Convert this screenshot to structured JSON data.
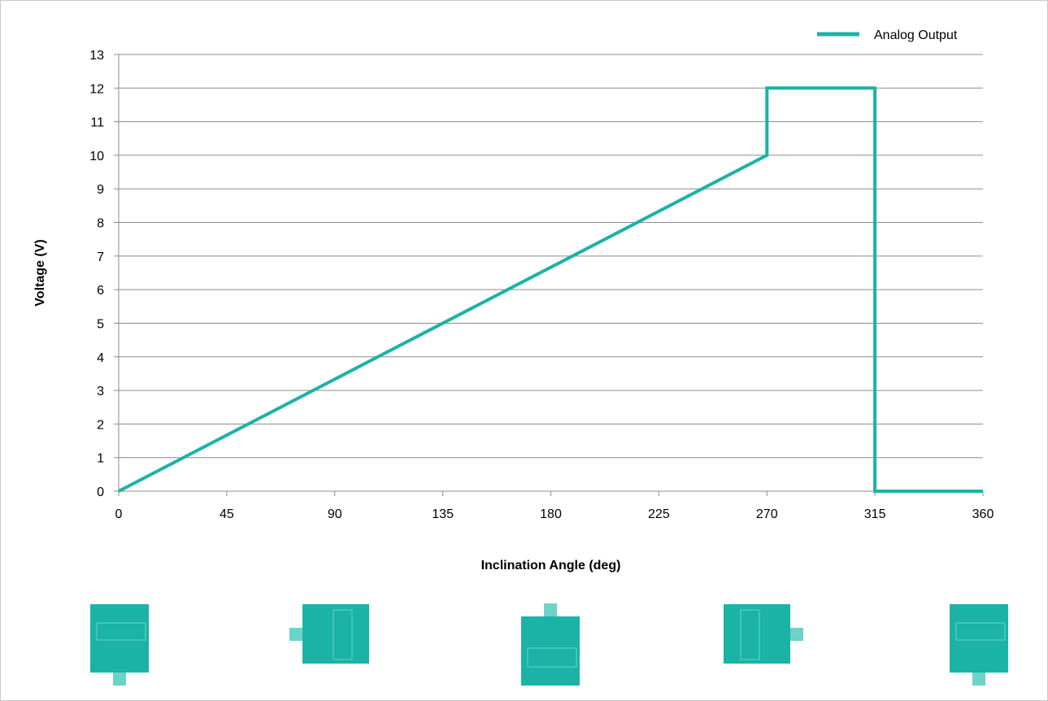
{
  "chart_data": {
    "type": "line",
    "title": "",
    "xlabel": "Inclination Angle (deg)",
    "ylabel": "Voltage (V)",
    "xlim": [
      0,
      360
    ],
    "ylim": [
      0,
      13
    ],
    "x_ticks": [
      "0",
      "45",
      "90",
      "135",
      "180",
      "225",
      "270",
      "315",
      "360"
    ],
    "y_ticks": [
      "0",
      "1",
      "2",
      "3",
      "4",
      "5",
      "6",
      "7",
      "8",
      "9",
      "10",
      "11",
      "12",
      "13"
    ],
    "grid": "horizontal",
    "legend_position": "top-right",
    "series": [
      {
        "name": "Analog Output",
        "color": "#1ab3a6",
        "points": [
          [
            0,
            0
          ],
          [
            270,
            10
          ],
          [
            270,
            12
          ],
          [
            315,
            12
          ],
          [
            315,
            0
          ],
          [
            360,
            0
          ]
        ]
      }
    ]
  },
  "orientation_icons": [
    {
      "angle": 0,
      "tab": "bottom",
      "icon": "sensor-tab-down-icon"
    },
    {
      "angle": 90,
      "tab": "left",
      "icon": "sensor-tab-left-icon"
    },
    {
      "angle": 180,
      "tab": "top",
      "icon": "sensor-tab-up-icon"
    },
    {
      "angle": 270,
      "tab": "right",
      "icon": "sensor-tab-right-icon"
    },
    {
      "angle": 360,
      "tab": "bottom",
      "icon": "sensor-tab-down-icon"
    }
  ],
  "colors": {
    "series": "#1ab3a6",
    "icon_body": "#1ab3a6",
    "icon_window": "#6cd3c8",
    "gridline": "#8c8c8c",
    "axis": "#8c8c8c"
  }
}
